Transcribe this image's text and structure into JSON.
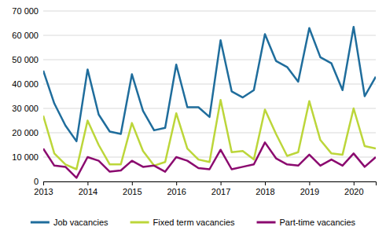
{
  "chart_data": {
    "type": "line",
    "categories": [
      "2013",
      null,
      null,
      null,
      "2014",
      null,
      null,
      null,
      "2015",
      null,
      null,
      null,
      "2016",
      null,
      null,
      null,
      "2017",
      null,
      null,
      null,
      "2018",
      null,
      null,
      null,
      "2019",
      null,
      null,
      null,
      "2020",
      null,
      null
    ],
    "series": [
      {
        "name": "Job vacancies",
        "color": "#1f6d9c",
        "values": [
          45500,
          32000,
          23000,
          16500,
          46000,
          27500,
          20500,
          19500,
          44000,
          29000,
          21000,
          22000,
          48000,
          30500,
          30500,
          26500,
          58000,
          37000,
          34500,
          37500,
          60500,
          49500,
          47000,
          41000,
          63000,
          51000,
          48500,
          37500,
          63500,
          35000,
          43000
        ]
      },
      {
        "name": "Fixed term vacancies",
        "color": "#bcd63a",
        "values": [
          27000,
          11500,
          7000,
          5000,
          25000,
          15000,
          7000,
          7000,
          24000,
          12500,
          6500,
          8000,
          28000,
          13500,
          9000,
          8000,
          33500,
          12000,
          12500,
          9000,
          29500,
          19500,
          10500,
          12000,
          33000,
          17000,
          11500,
          11000,
          30000,
          14500,
          13500
        ]
      },
      {
        "name": "Part-time vacancies",
        "color": "#8b0a6f",
        "values": [
          13500,
          6500,
          6000,
          1500,
          10000,
          8500,
          4000,
          4500,
          8500,
          6000,
          6500,
          4000,
          10000,
          8500,
          5500,
          5000,
          13000,
          5000,
          6000,
          7000,
          16000,
          9500,
          7000,
          6500,
          11000,
          6500,
          9000,
          6500,
          11500,
          6000,
          10000
        ]
      }
    ],
    "ylim": [
      0,
      70000
    ],
    "yticks": [
      0,
      {
        "value": 10000,
        "label": "10 000"
      },
      {
        "value": 20000,
        "label": "20 000"
      },
      {
        "value": 30000,
        "label": "30 000"
      },
      {
        "value": 40000,
        "label": "40 000"
      },
      {
        "value": 50000,
        "label": "50 000"
      },
      {
        "value": 60000,
        "label": "60 000"
      },
      {
        "value": 70000,
        "label": "70 000"
      }
    ],
    "grid": true,
    "legend": "bottom"
  }
}
